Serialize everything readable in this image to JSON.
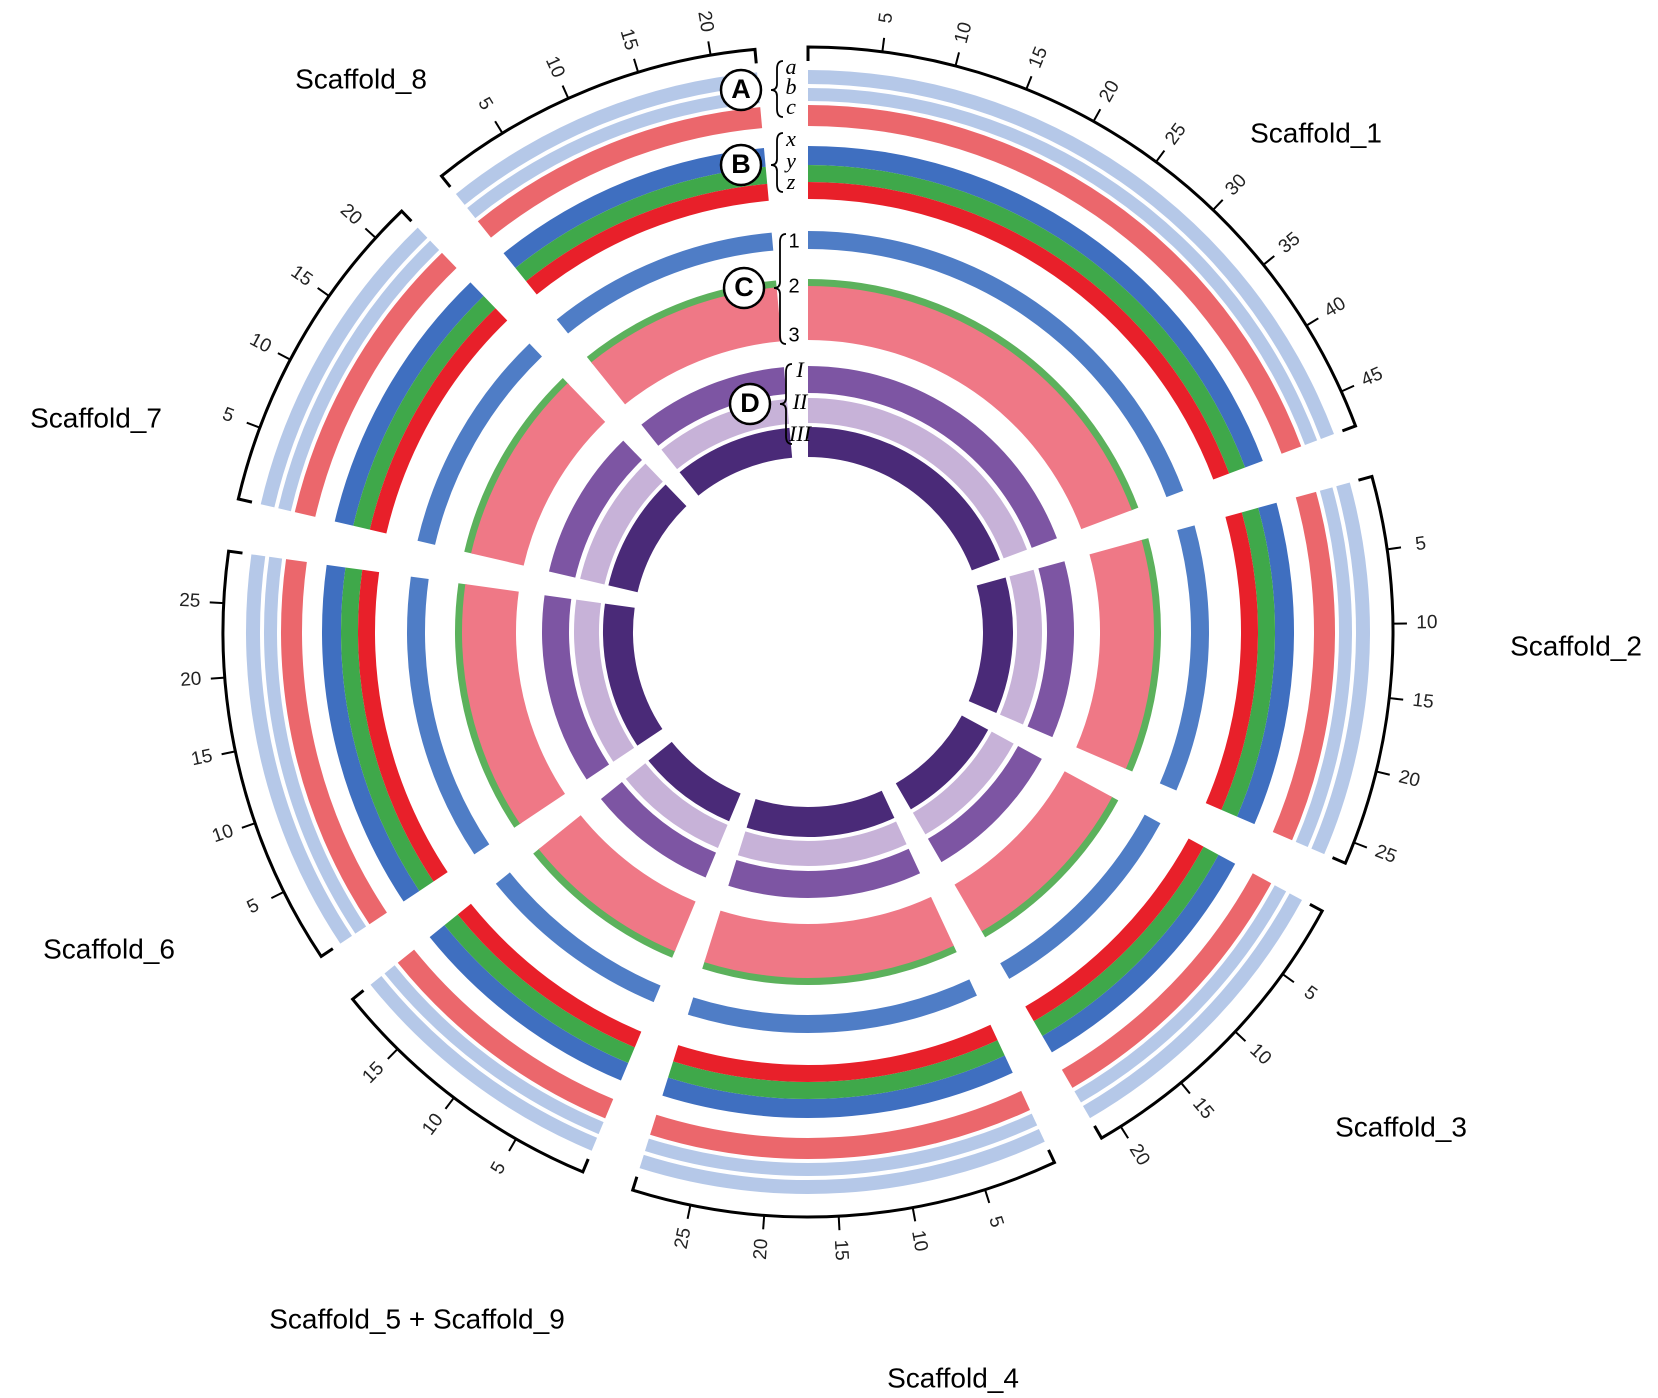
{
  "chart_data": {
    "type": "circos",
    "scaffolds": [
      {
        "name": "Scaffold_1",
        "length": 47.5,
        "ticks": [
          5,
          10,
          15,
          20,
          25,
          30,
          35,
          40,
          45
        ]
      },
      {
        "name": "Scaffold_2",
        "length": 26.5,
        "ticks": [
          5,
          10,
          15,
          20,
          25
        ]
      },
      {
        "name": "Scaffold_3",
        "length": 21.5,
        "ticks": [
          5,
          10,
          15,
          20
        ]
      },
      {
        "name": "Scaffold_4",
        "length": 29,
        "ticks": [
          5,
          10,
          15,
          20,
          25
        ]
      },
      {
        "name": "Scaffold_5 + Scaffold_9",
        "length": 19.5,
        "ticks": [
          5,
          10,
          15
        ]
      },
      {
        "name": "Scaffold_6",
        "length": 28.5,
        "ticks": [
          5,
          10,
          15,
          20,
          25
        ]
      },
      {
        "name": "Scaffold_7",
        "length": 22.5,
        "ticks": [
          5,
          10,
          15,
          20
        ]
      },
      {
        "name": "Scaffold_8",
        "length": 23,
        "ticks": [
          5,
          10,
          15,
          20
        ]
      }
    ],
    "legend": [
      {
        "label": "A",
        "tracks": [
          {
            "label": "a",
            "color": "#5b86cc"
          },
          {
            "label": "b",
            "color": "#5b86cc"
          },
          {
            "label": "c",
            "color": "#e3262e"
          }
        ]
      },
      {
        "label": "B",
        "tracks": [
          {
            "label": "x",
            "color": "#3f6fc0"
          },
          {
            "label": "y",
            "color": "#3fa84a"
          },
          {
            "label": "z",
            "color": "#e8202a"
          }
        ]
      },
      {
        "label": "C",
        "tracks": [
          {
            "label": "1",
            "color": "#3c6fc0"
          },
          {
            "label": "2",
            "color": "#4aa84a"
          },
          {
            "label": "3",
            "color": "#ef7886"
          }
        ]
      },
      {
        "label": "D",
        "tracks": [
          {
            "label": "I",
            "color": "#7d55a3"
          },
          {
            "label": "II",
            "color": "#c7b2d8"
          },
          {
            "label": "III",
            "color": "#4a2a78"
          }
        ]
      }
    ]
  }
}
